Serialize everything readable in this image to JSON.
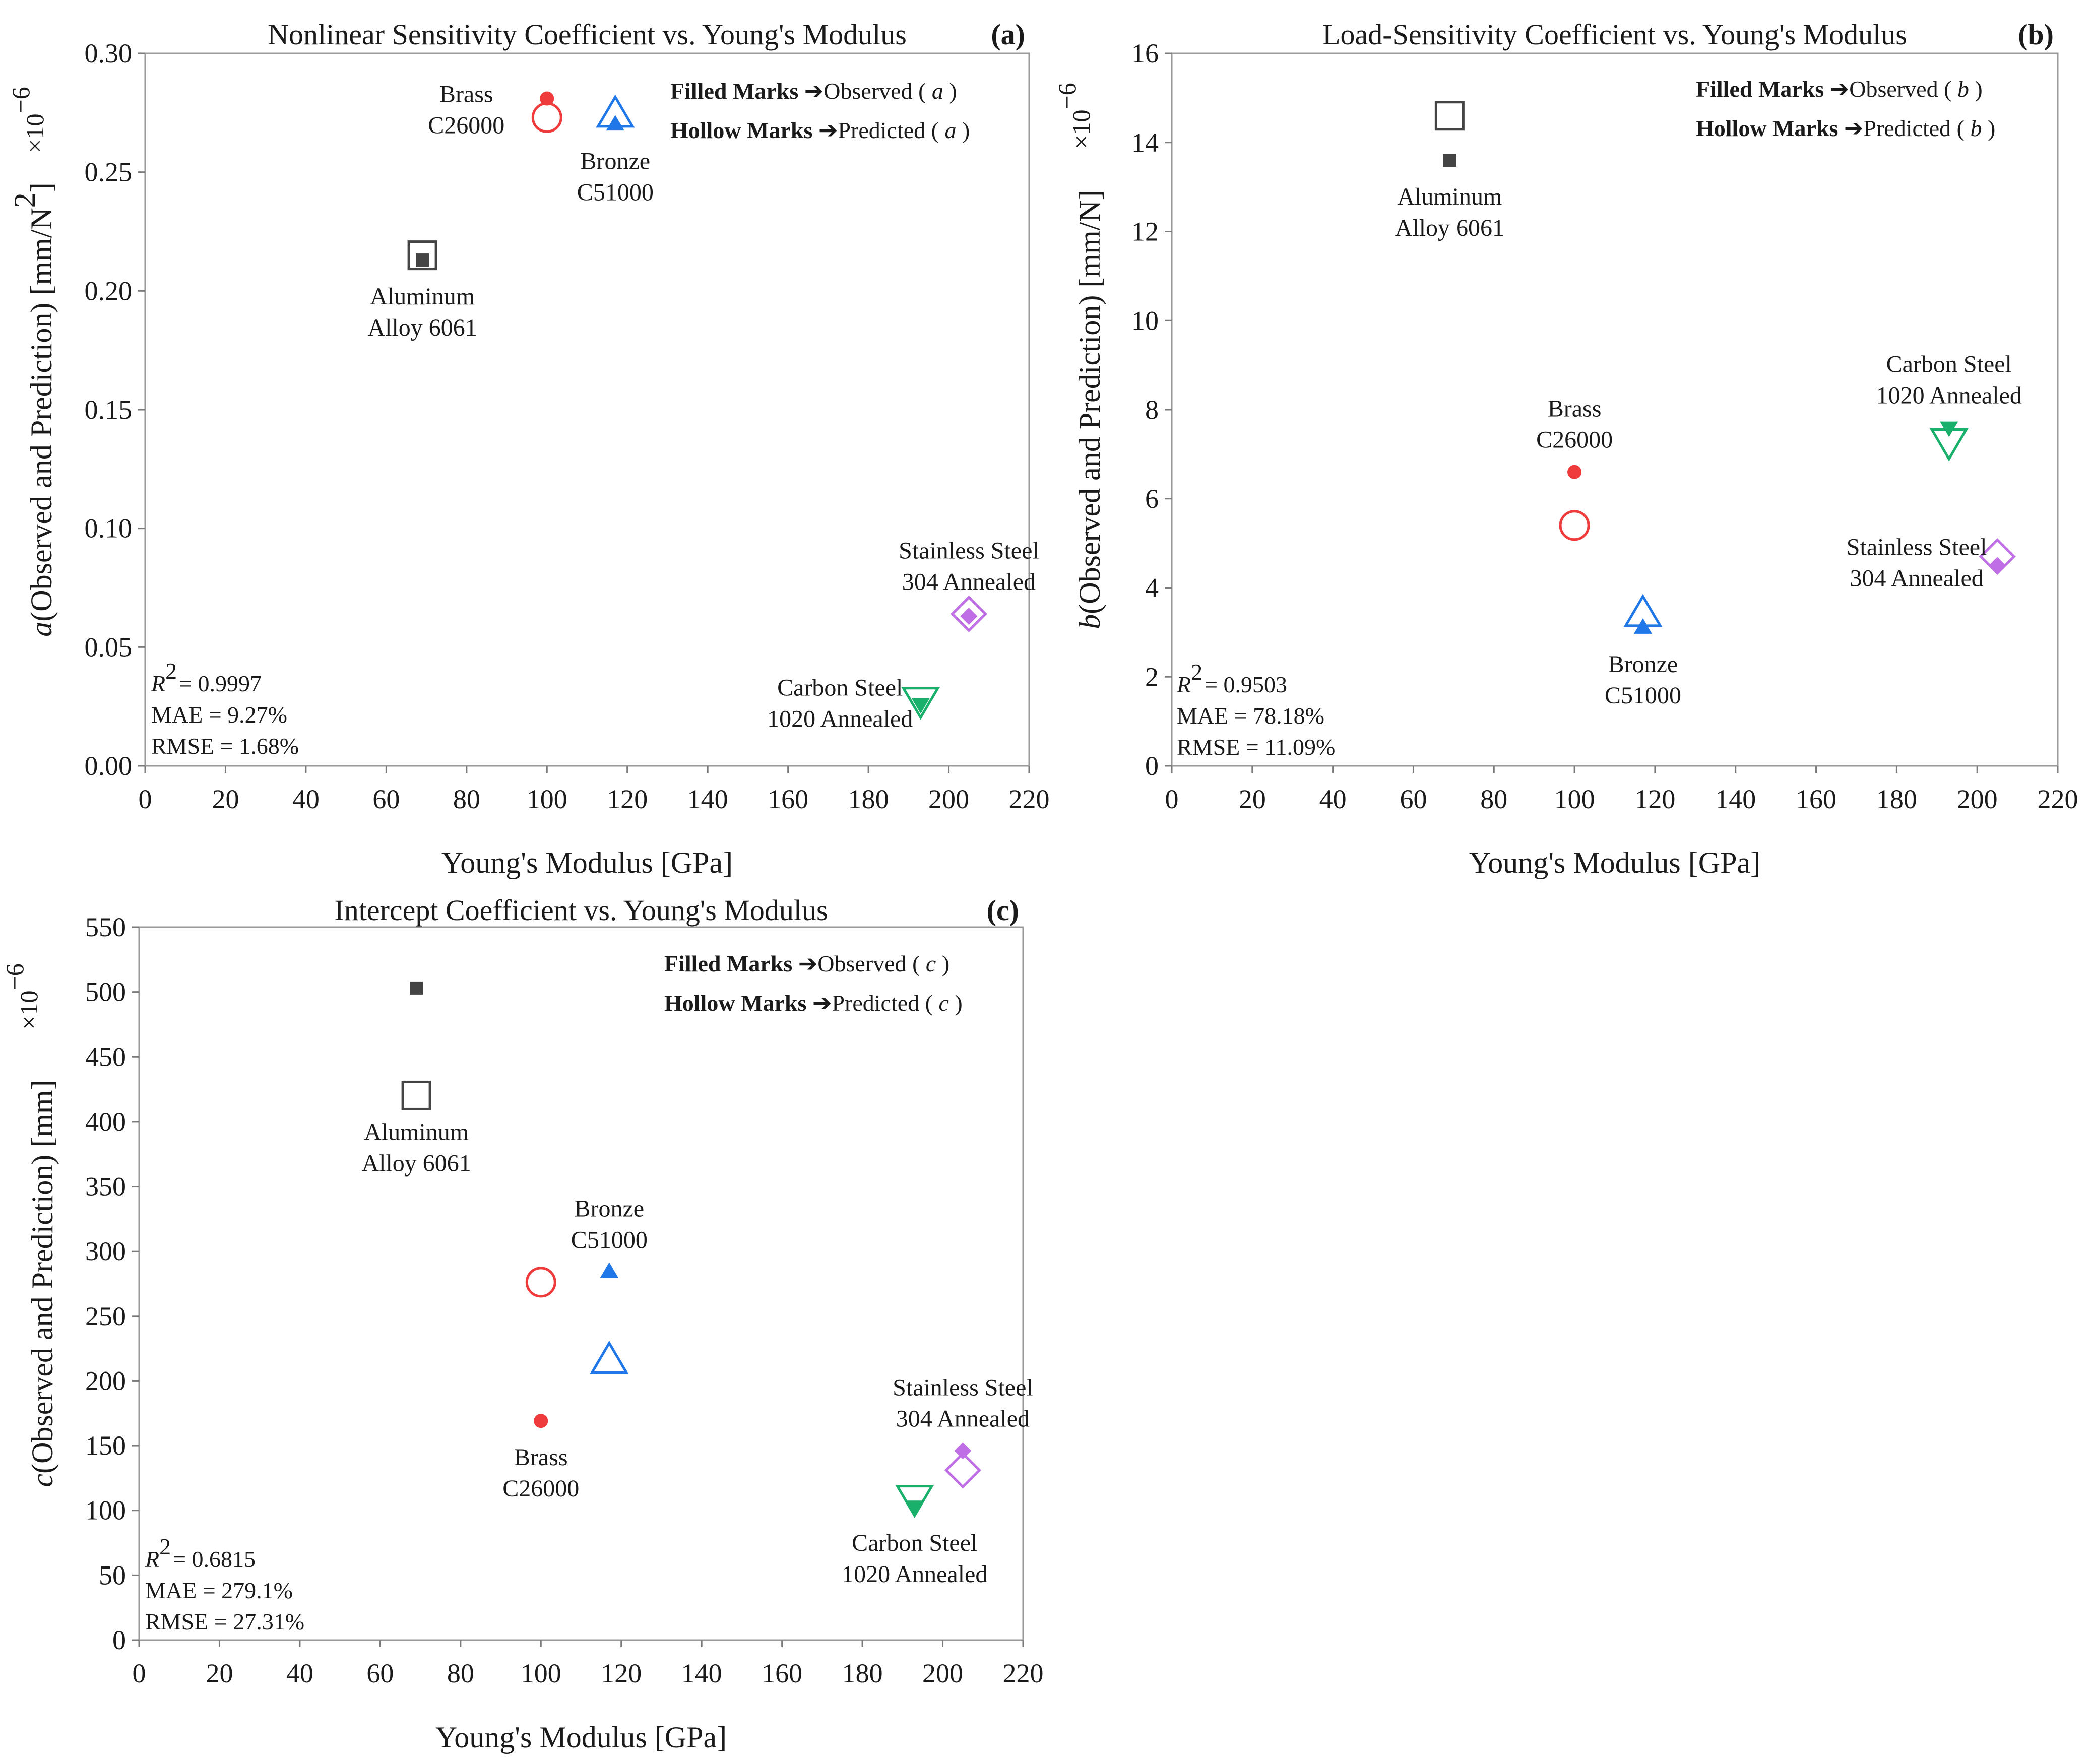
{
  "chart_data": [
    {
      "type": "scatter",
      "panel": "(a)",
      "title": "Nonlinear Sensitivity Coefficient vs. Young's Modulus",
      "xlabel": "Young's Modulus [GPa]",
      "ylabel": "a(Observed and Prediction) [mm/N²]",
      "ylabel_var": "a",
      "ylabel_rest": "(Observed and Prediction) [mm/N",
      "ylabel_sup": "2",
      "ylabel_end": "]",
      "scale_note": "×10",
      "scale_exp": "−6",
      "xlim": [
        0,
        220
      ],
      "ylim": [
        0,
        0.3
      ],
      "xticks": [
        0,
        20,
        40,
        60,
        80,
        100,
        120,
        140,
        160,
        180,
        200,
        220
      ],
      "yticks": [
        0,
        0.05,
        0.1,
        0.15,
        0.2,
        0.25,
        0.3
      ],
      "ytick_labels": [
        "0.00",
        "0.05",
        "0.10",
        "0.15",
        "0.20",
        "0.25",
        "0.30"
      ],
      "legend": {
        "filled_bold": "Filled Marks",
        "filled_rest": "➔Observed ( ",
        "hollow_bold": "Hollow Marks",
        "hollow_rest": "➔Predicted ( ",
        "var": "a",
        "close": " )"
      },
      "stats": {
        "r2_label": "R",
        "r2_sup": "2",
        "r2_value": "= 0.9997",
        "mae": "MAE = 9.27%",
        "rmse": "RMSE = 1.68%"
      },
      "series": [
        {
          "material": "Aluminum Alloy 6061",
          "label_lines": [
            "Aluminum",
            "Alloy 6061"
          ],
          "label_pos": "below",
          "marker": "square",
          "color": "#444444",
          "x": 69,
          "observed": 0.213,
          "predicted": 0.215
        },
        {
          "material": "Brass C26000",
          "label_lines": [
            "Brass",
            "C26000"
          ],
          "label_pos": "left",
          "marker": "circle",
          "color": "#ef3b3b",
          "x": 100,
          "observed": 0.281,
          "predicted": 0.273
        },
        {
          "material": "Bronze C51000",
          "label_lines": [
            "Bronze",
            "C51000"
          ],
          "label_pos": "below",
          "marker": "triangle-up",
          "color": "#1f77e8",
          "x": 117,
          "observed": 0.27,
          "predicted": 0.274
        },
        {
          "material": "Carbon Steel 1020 Annealed",
          "label_lines": [
            "Carbon Steel",
            "1020 Annealed"
          ],
          "label_pos": "left",
          "marker": "triangle-down",
          "color": "#18b06a",
          "x": 193,
          "observed": 0.026,
          "predicted": 0.028
        },
        {
          "material": "Stainless Steel 304 Annealed",
          "label_lines": [
            "Stainless Steel",
            "304 Annealed"
          ],
          "label_pos": "above",
          "marker": "diamond",
          "color": "#c06ee6",
          "x": 205,
          "observed": 0.063,
          "predicted": 0.064
        }
      ]
    },
    {
      "type": "scatter",
      "panel": "(b)",
      "title": "Load-Sensitivity Coefficient vs. Young's Modulus",
      "xlabel": "Young's Modulus [GPa]",
      "ylabel": "b(Observed and Prediction) [mm/N]",
      "ylabel_var": "b",
      "ylabel_rest": "(Observed and Prediction) [mm/N]",
      "ylabel_sup": "",
      "ylabel_end": "",
      "scale_note": "×10",
      "scale_exp": "−6",
      "xlim": [
        0,
        220
      ],
      "ylim": [
        0,
        16
      ],
      "xticks": [
        0,
        20,
        40,
        60,
        80,
        100,
        120,
        140,
        160,
        180,
        200,
        220
      ],
      "yticks": [
        0,
        2,
        4,
        6,
        8,
        10,
        12,
        14,
        16
      ],
      "ytick_labels": [
        "0",
        "2",
        "4",
        "6",
        "8",
        "10",
        "12",
        "14",
        "16"
      ],
      "legend": {
        "filled_bold": "Filled Marks",
        "filled_rest": "➔Observed ( ",
        "hollow_bold": "Hollow Marks",
        "hollow_rest": "➔Predicted ( ",
        "var": "b",
        "close": " )"
      },
      "stats": {
        "r2_label": "R",
        "r2_sup": "2",
        "r2_value": "= 0.9503",
        "mae": "MAE = 78.18%",
        "rmse": "RMSE = 11.09%"
      },
      "series": [
        {
          "material": "Aluminum Alloy 6061",
          "label_lines": [
            "Aluminum",
            "Alloy 6061"
          ],
          "label_pos": "below",
          "marker": "square",
          "color": "#444444",
          "x": 69,
          "observed": 13.6,
          "predicted": 14.6
        },
        {
          "material": "Brass C26000",
          "label_lines": [
            "Brass",
            "C26000"
          ],
          "label_pos": "above",
          "marker": "circle",
          "color": "#ef3b3b",
          "x": 100,
          "observed": 6.6,
          "predicted": 5.4
        },
        {
          "material": "Bronze C51000",
          "label_lines": [
            "Bronze",
            "C51000"
          ],
          "label_pos": "below",
          "marker": "triangle-up",
          "color": "#1f77e8",
          "x": 117,
          "observed": 3.1,
          "predicted": 3.4
        },
        {
          "material": "Carbon Steel 1020 Annealed",
          "label_lines": [
            "Carbon Steel",
            "1020 Annealed"
          ],
          "label_pos": "above",
          "marker": "triangle-down",
          "color": "#18b06a",
          "x": 193,
          "observed": 7.6,
          "predicted": 7.3
        },
        {
          "material": "Stainless Steel 304 Annealed",
          "label_lines": [
            "Stainless Steel",
            "304 Annealed"
          ],
          "label_pos": "left",
          "marker": "diamond",
          "color": "#c06ee6",
          "x": 205,
          "observed": 4.5,
          "predicted": 4.7
        }
      ]
    },
    {
      "type": "scatter",
      "panel": "(c)",
      "title": "Intercept Coefficient vs. Young's Modulus",
      "xlabel": "Young's Modulus [GPa]",
      "ylabel": "c(Observed and Prediction) [mm]",
      "ylabel_var": "c",
      "ylabel_rest": "(Observed and Prediction) [mm]",
      "ylabel_sup": "",
      "ylabel_end": "",
      "scale_note": "×10",
      "scale_exp": "−6",
      "xlim": [
        0,
        220
      ],
      "ylim": [
        0,
        550
      ],
      "xticks": [
        0,
        20,
        40,
        60,
        80,
        100,
        120,
        140,
        160,
        180,
        200,
        220
      ],
      "yticks": [
        0,
        50,
        100,
        150,
        200,
        250,
        300,
        350,
        400,
        450,
        500,
        550
      ],
      "ytick_labels": [
        "0",
        "50",
        "100",
        "150",
        "200",
        "250",
        "300",
        "350",
        "400",
        "450",
        "500",
        "550"
      ],
      "legend": {
        "filled_bold": "Filled Marks",
        "filled_rest": "➔Observed ( ",
        "hollow_bold": "Hollow Marks",
        "hollow_rest": "➔Predicted ( ",
        "var": "c",
        "close": " )"
      },
      "stats": {
        "r2_label": "R",
        "r2_sup": "2",
        "r2_value": "= 0.6815",
        "mae": "MAE = 279.1%",
        "rmse": "RMSE = 27.31%"
      },
      "series": [
        {
          "material": "Aluminum Alloy 6061",
          "label_lines": [
            "Aluminum",
            "Alloy 6061"
          ],
          "label_pos": "below",
          "marker": "square",
          "color": "#444444",
          "x": 69,
          "observed": 503,
          "predicted": 420
        },
        {
          "material": "Brass C26000",
          "label_lines": [
            "Brass",
            "C26000"
          ],
          "label_pos": "below",
          "marker": "circle",
          "color": "#ef3b3b",
          "x": 100,
          "observed": 169,
          "predicted": 276
        },
        {
          "material": "Bronze C51000",
          "label_lines": [
            "Bronze",
            "C51000"
          ],
          "label_pos": "above",
          "marker": "triangle-up",
          "color": "#1f77e8",
          "x": 117,
          "observed": 284,
          "predicted": 215
        },
        {
          "material": "Carbon Steel 1020 Annealed",
          "label_lines": [
            "Carbon Steel",
            "1020 Annealed"
          ],
          "label_pos": "below",
          "marker": "triangle-down",
          "color": "#18b06a",
          "x": 193,
          "observed": 103,
          "predicted": 110
        },
        {
          "material": "Stainless Steel 304 Annealed",
          "label_lines": [
            "Stainless Steel",
            "304 Annealed"
          ],
          "label_pos": "above",
          "marker": "diamond",
          "color": "#c06ee6",
          "x": 205,
          "observed": 146,
          "predicted": 131
        }
      ]
    }
  ]
}
